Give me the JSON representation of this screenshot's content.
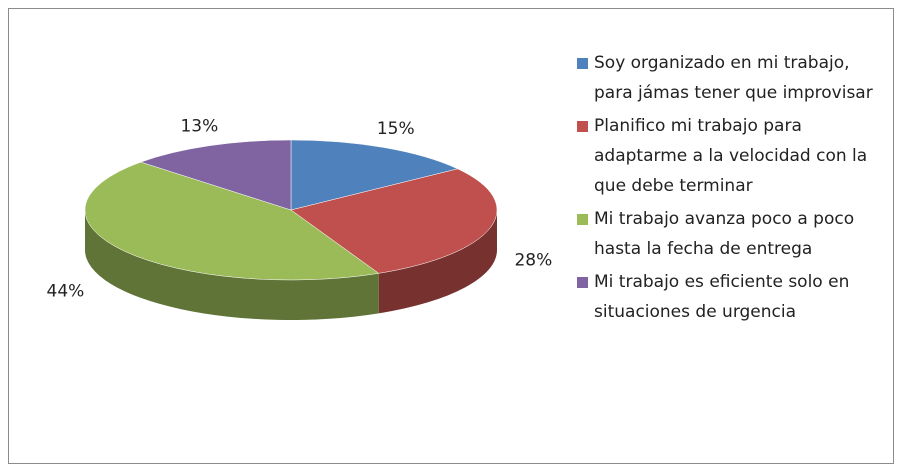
{
  "chart_data": {
    "type": "pie",
    "categories": [
      "Soy organizado en mi trabajo, para jámas tener que improvisar",
      "Planifico mi trabajo para adaptarme a la velocidad con la que debe terminar",
      "Mi trabajo avanza poco a poco hasta la fecha de entrega",
      "Mi trabajo es eficiente solo en situaciones de urgencia"
    ],
    "values": [
      15,
      28,
      44,
      13
    ],
    "value_labels": [
      "15%",
      "28%",
      "44%",
      "13%"
    ],
    "colors": [
      "#4f81bd",
      "#c0504d",
      "#9bbb59",
      "#8064a2"
    ]
  }
}
